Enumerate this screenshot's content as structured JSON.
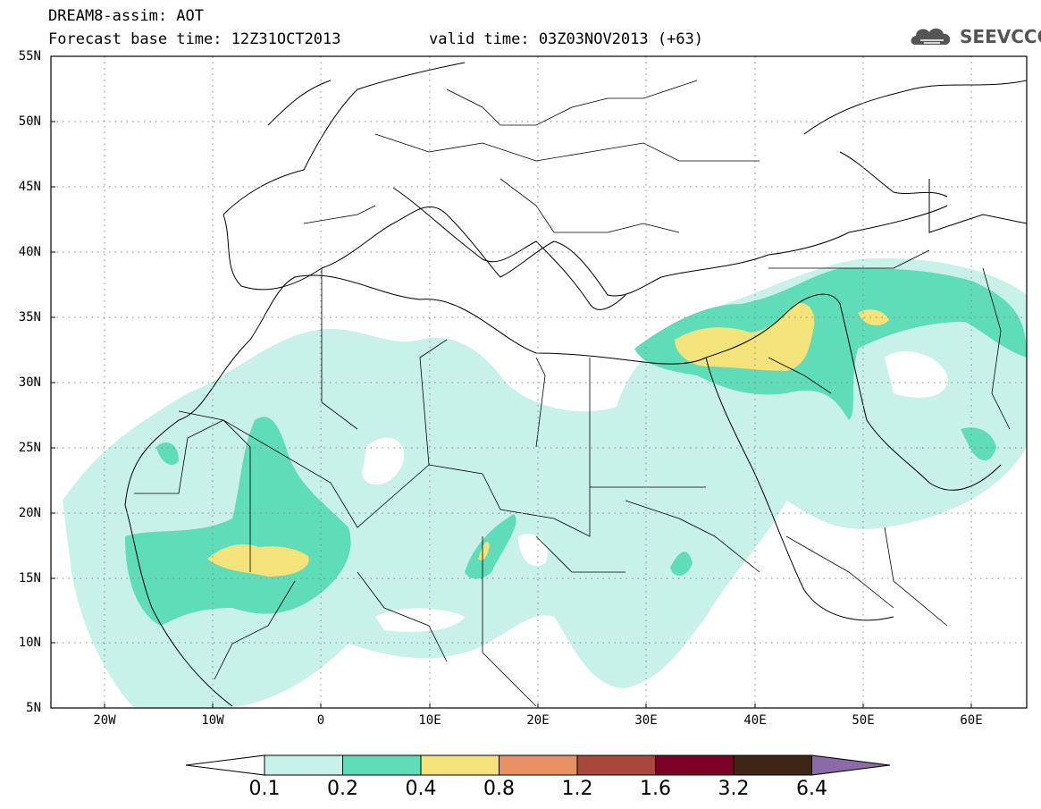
{
  "header": {
    "title": "DREAM8-assim: AOT",
    "base_time": "Forecast base time: 12Z31OCT2013",
    "valid_time": "valid time: 03Z03NOV2013 (+63)"
  },
  "logo": {
    "text": "SEEVCCC",
    "icon": "cloud-icon"
  },
  "map": {
    "lat_labels": [
      "55N",
      "50N",
      "45N",
      "40N",
      "35N",
      "30N",
      "25N",
      "20N",
      "15N",
      "10N",
      "5N"
    ],
    "lon_labels": [
      "20W",
      "10W",
      "0",
      "10E",
      "20E",
      "30E",
      "40E",
      "50E",
      "60E"
    ],
    "lat_range": [
      5,
      55
    ],
    "lon_range": [
      -25,
      65
    ]
  },
  "colorbar": {
    "labels": [
      "0.1",
      "0.2",
      "0.4",
      "0.8",
      "1.2",
      "1.6",
      "3.2",
      "6.4"
    ],
    "colors": [
      "#ffffff",
      "#c8f1ea",
      "#5fdcb8",
      "#f3e37a",
      "#e98f64",
      "#a7483b",
      "#7a0026",
      "#3d2616",
      "#8b6aa7"
    ]
  }
}
